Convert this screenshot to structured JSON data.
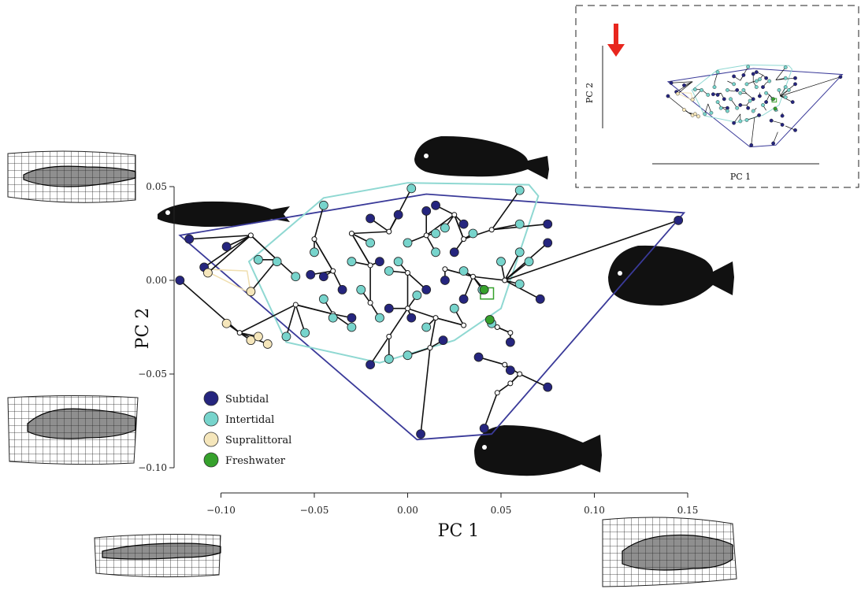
{
  "chart_data": {
    "type": "scatter",
    "title": "",
    "xlabel": "PC 1",
    "ylabel": "PC 2",
    "xlim": [
      -0.12,
      0.15
    ],
    "ylim": [
      -0.1,
      0.05
    ],
    "xticks": [
      -0.1,
      -0.05,
      0.0,
      0.05,
      0.1,
      0.15
    ],
    "xtick_labels": [
      "−0.10",
      "−0.05",
      "0.00",
      "0.05",
      "0.10",
      "0.15"
    ],
    "yticks": [
      0.05,
      0.0,
      -0.05,
      -0.1
    ],
    "ytick_labels": [
      "0.05",
      "0.00",
      "−0.05",
      "−0.10"
    ],
    "legend_position": "bottom-left",
    "series": [
      {
        "name": "Subtidal",
        "color": "#25257e",
        "points": [
          [
            -0.122,
            0.0
          ],
          [
            -0.117,
            0.022
          ],
          [
            -0.109,
            0.007
          ],
          [
            -0.097,
            0.018
          ],
          [
            0.145,
            0.032
          ],
          [
            0.007,
            -0.082
          ],
          [
            0.041,
            -0.079
          ],
          [
            0.075,
            0.03
          ],
          [
            0.075,
            0.02
          ],
          [
            0.071,
            -0.01
          ],
          [
            0.075,
            -0.057
          ],
          [
            0.055,
            -0.048
          ],
          [
            0.055,
            -0.033
          ],
          [
            -0.02,
            0.033
          ],
          [
            -0.005,
            0.035
          ],
          [
            0.015,
            0.04
          ],
          [
            0.01,
            0.037
          ],
          [
            0.025,
            0.015
          ],
          [
            0.03,
            -0.01
          ],
          [
            -0.02,
            -0.045
          ],
          [
            -0.01,
            -0.015
          ],
          [
            0.019,
            -0.032
          ],
          [
            0.038,
            -0.041
          ],
          [
            -0.035,
            -0.005
          ],
          [
            0.02,
            0.0
          ],
          [
            -0.052,
            0.003
          ],
          [
            -0.045,
            0.002
          ],
          [
            -0.03,
            -0.02
          ],
          [
            0.01,
            -0.005
          ],
          [
            0.002,
            -0.02
          ],
          [
            -0.015,
            0.01
          ],
          [
            0.03,
            0.03
          ]
        ]
      },
      {
        "name": "Intertidal",
        "color": "#77d4cc",
        "points": [
          [
            -0.045,
            0.04
          ],
          [
            0.002,
            0.049
          ],
          [
            0.06,
            0.048
          ],
          [
            0.015,
            0.025
          ],
          [
            0.06,
            0.015
          ],
          [
            -0.06,
            0.002
          ],
          [
            -0.065,
            -0.03
          ],
          [
            -0.055,
            -0.028
          ],
          [
            -0.03,
            -0.025
          ],
          [
            -0.01,
            -0.042
          ],
          [
            0.0,
            -0.04
          ],
          [
            0.045,
            -0.023
          ],
          [
            0.06,
            -0.002
          ],
          [
            0.065,
            0.01
          ],
          [
            0.05,
            0.01
          ],
          [
            0.04,
            -0.005
          ],
          [
            0.02,
            0.028
          ],
          [
            0.025,
            -0.015
          ],
          [
            -0.02,
            0.02
          ],
          [
            -0.03,
            0.01
          ],
          [
            -0.04,
            -0.02
          ],
          [
            -0.045,
            -0.01
          ],
          [
            0.005,
            -0.008
          ],
          [
            0.015,
            0.015
          ],
          [
            0.03,
            0.005
          ],
          [
            -0.01,
            0.005
          ],
          [
            0.035,
            0.025
          ],
          [
            -0.05,
            0.015
          ],
          [
            0.0,
            0.02
          ],
          [
            -0.025,
            -0.005
          ],
          [
            0.01,
            -0.025
          ],
          [
            -0.015,
            -0.02
          ],
          [
            -0.07,
            0.01
          ],
          [
            -0.08,
            0.011
          ],
          [
            0.06,
            0.03
          ],
          [
            -0.005,
            0.01
          ]
        ]
      },
      {
        "name": "Supralittoral",
        "color": "#f5e6bb",
        "points": [
          [
            -0.107,
            0.004
          ],
          [
            -0.084,
            -0.006
          ],
          [
            -0.097,
            -0.023
          ],
          [
            -0.084,
            -0.032
          ],
          [
            -0.08,
            -0.03
          ],
          [
            -0.075,
            -0.034
          ]
        ]
      },
      {
        "name": "Freshwater",
        "color": "#36a12c",
        "points": [
          [
            0.041,
            -0.005
          ],
          [
            0.044,
            -0.021
          ]
        ]
      }
    ],
    "nodes": [
      [
        -0.084,
        0.024
      ],
      [
        -0.05,
        0.022
      ],
      [
        -0.03,
        0.025
      ],
      [
        -0.01,
        0.026
      ],
      [
        0.01,
        0.024
      ],
      [
        0.03,
        0.022
      ],
      [
        0.045,
        0.027
      ],
      [
        -0.07,
        0.011
      ],
      [
        -0.04,
        0.005
      ],
      [
        -0.02,
        0.008
      ],
      [
        0.0,
        0.004
      ],
      [
        0.02,
        0.006
      ],
      [
        0.035,
        0.002
      ],
      [
        0.052,
        0.0
      ],
      [
        -0.06,
        -0.013
      ],
      [
        -0.04,
        -0.018
      ],
      [
        -0.02,
        -0.012
      ],
      [
        0.0,
        -0.015
      ],
      [
        0.015,
        -0.02
      ],
      [
        0.03,
        -0.024
      ],
      [
        -0.01,
        -0.03
      ],
      [
        0.012,
        -0.036
      ],
      [
        0.055,
        -0.028
      ],
      [
        0.055,
        -0.055
      ],
      [
        0.06,
        -0.05
      ],
      [
        0.048,
        -0.06
      ],
      [
        0.052,
        -0.045
      ],
      [
        0.048,
        -0.025
      ],
      [
        -0.09,
        -0.028
      ],
      [
        0.025,
        0.035
      ]
    ],
    "convex_hulls": [
      {
        "group": "Subtidal",
        "points": [
          [
            -0.122,
            0.024
          ],
          [
            0.01,
            0.046
          ],
          [
            0.148,
            0.036
          ],
          [
            0.045,
            -0.082
          ],
          [
            0.005,
            -0.085
          ]
        ]
      },
      {
        "group": "Intertidal",
        "points": [
          [
            -0.045,
            0.044
          ],
          [
            0.0,
            0.052
          ],
          [
            0.065,
            0.051
          ],
          [
            0.07,
            0.045
          ],
          [
            0.05,
            -0.015
          ],
          [
            0.025,
            -0.032
          ],
          [
            -0.015,
            -0.044
          ],
          [
            -0.065,
            -0.033
          ],
          [
            -0.085,
            0.01
          ]
        ]
      },
      {
        "group": "Supralittoral",
        "points": [
          [
            -0.11,
            0.006
          ],
          [
            -0.086,
            0.005
          ],
          [
            -0.084,
            -0.007
          ]
        ]
      },
      {
        "group": "Freshwater",
        "points": [
          [
            0.039,
            -0.004
          ],
          [
            0.046,
            -0.004
          ],
          [
            0.046,
            -0.01
          ],
          [
            0.039,
            -0.01
          ]
        ]
      }
    ],
    "inset": {
      "xlabel": "PC 1",
      "ylabel": "PC 2",
      "indicator": "red-arrow"
    }
  }
}
